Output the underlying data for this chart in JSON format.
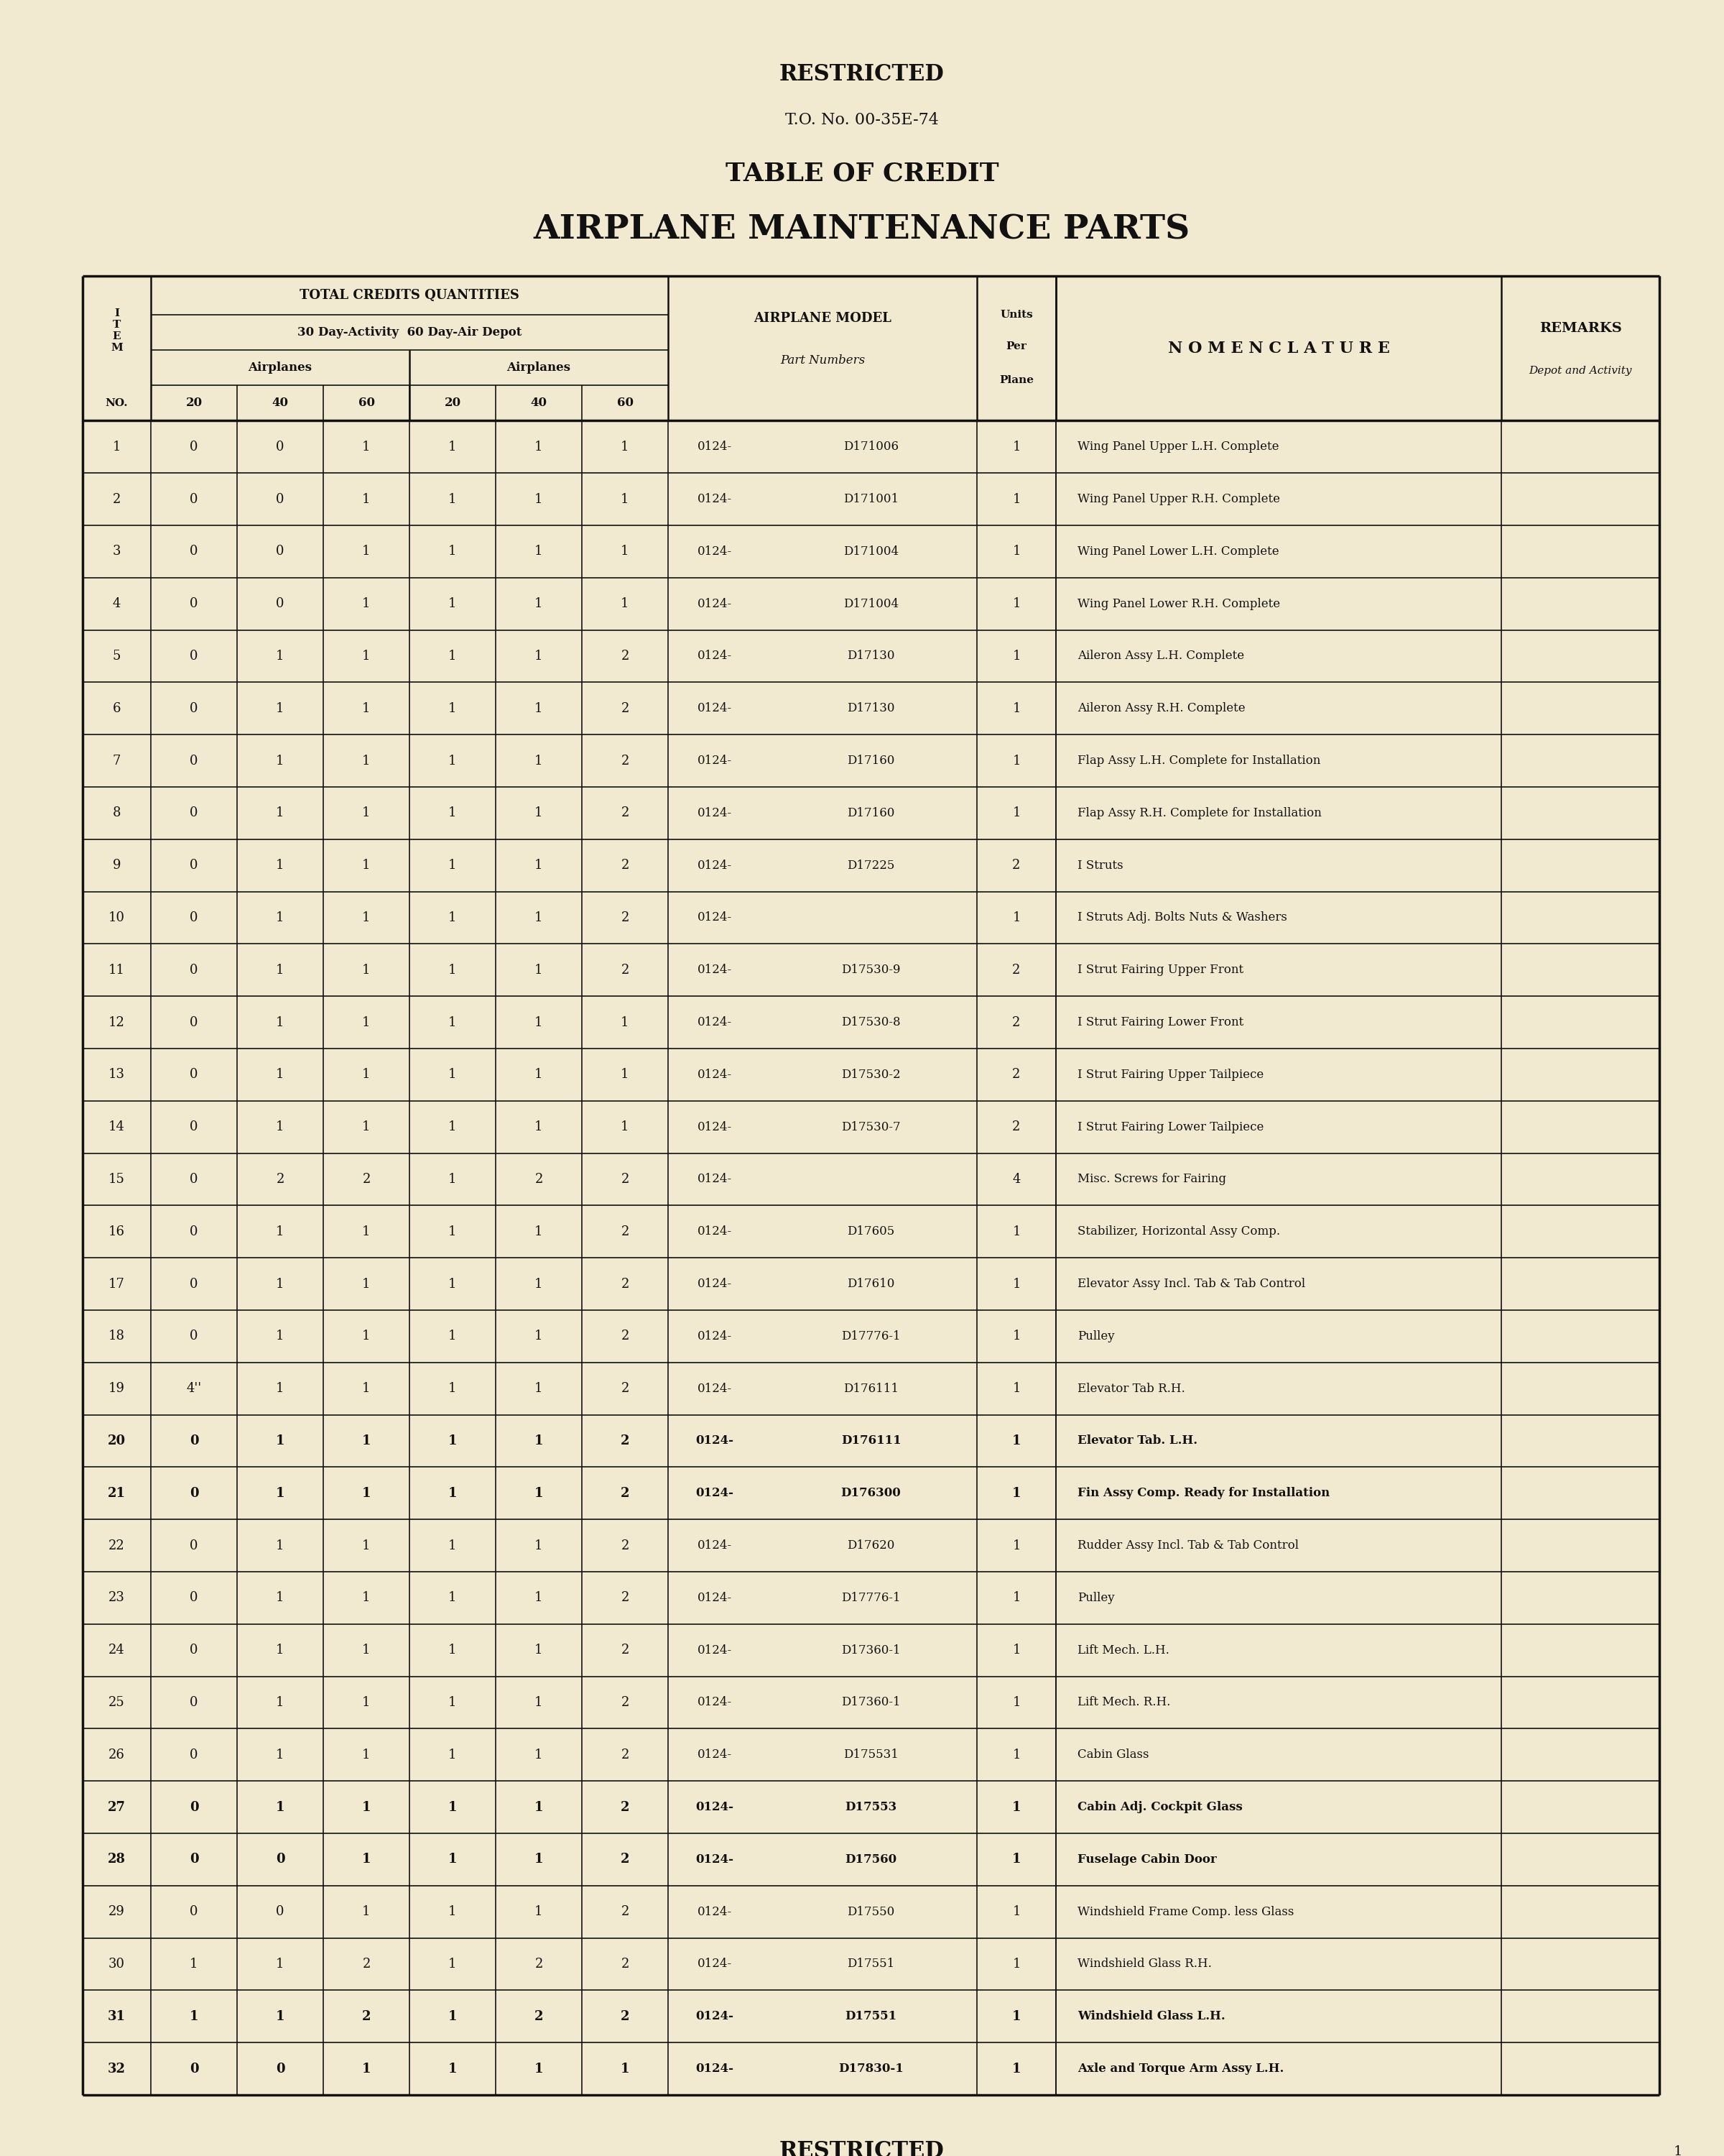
{
  "title_restricted": "RESTRICTED",
  "title_to": "T.O. No. 00-35E-74",
  "title_line1": "TABLE OF CREDIT",
  "title_line2": "AIRPLANE MAINTENANCE PARTS",
  "footer_restricted": "RESTRICTED",
  "page_number": "1",
  "bg_color": "#f2ead0",
  "text_color": "#111111",
  "rows": [
    {
      "no": "1",
      "c20": "0",
      "c40": "0",
      "c60": "1",
      "d20": "1",
      "d40": "1",
      "d60": "1",
      "part_prefix": "0124-",
      "part_num": "D171006",
      "units": "1",
      "nomenclature": "Wing Panel Upper L.H. Complete",
      "bold": false
    },
    {
      "no": "2",
      "c20": "0",
      "c40": "0",
      "c60": "1",
      "d20": "1",
      "d40": "1",
      "d60": "1",
      "part_prefix": "0124-",
      "part_num": "D171001",
      "units": "1",
      "nomenclature": "Wing Panel Upper R.H. Complete",
      "bold": false
    },
    {
      "no": "3",
      "c20": "0",
      "c40": "0",
      "c60": "1",
      "d20": "1",
      "d40": "1",
      "d60": "1",
      "part_prefix": "0124-",
      "part_num": "D171004",
      "units": "1",
      "nomenclature": "Wing Panel Lower L.H. Complete",
      "bold": false
    },
    {
      "no": "4",
      "c20": "0",
      "c40": "0",
      "c60": "1",
      "d20": "1",
      "d40": "1",
      "d60": "1",
      "part_prefix": "0124-",
      "part_num": "D171004",
      "units": "1",
      "nomenclature": "Wing Panel Lower R.H. Complete",
      "bold": false
    },
    {
      "no": "5",
      "c20": "0",
      "c40": "1",
      "c60": "1",
      "d20": "1",
      "d40": "1",
      "d60": "2",
      "part_prefix": "0124-",
      "part_num": "D17130",
      "units": "1",
      "nomenclature": "Aileron Assy L.H. Complete",
      "bold": false
    },
    {
      "no": "6",
      "c20": "0",
      "c40": "1",
      "c60": "1",
      "d20": "1",
      "d40": "1",
      "d60": "2",
      "part_prefix": "0124-",
      "part_num": "D17130",
      "units": "1",
      "nomenclature": "Aileron Assy R.H. Complete",
      "bold": false
    },
    {
      "no": "7",
      "c20": "0",
      "c40": "1",
      "c60": "1",
      "d20": "1",
      "d40": "1",
      "d60": "2",
      "part_prefix": "0124-",
      "part_num": "D17160",
      "units": "1",
      "nomenclature": "Flap Assy L.H. Complete for Installation",
      "bold": false
    },
    {
      "no": "8",
      "c20": "0",
      "c40": "1",
      "c60": "1",
      "d20": "1",
      "d40": "1",
      "d60": "2",
      "part_prefix": "0124-",
      "part_num": "D17160",
      "units": "1",
      "nomenclature": "Flap Assy R.H. Complete for Installation",
      "bold": false
    },
    {
      "no": "9",
      "c20": "0",
      "c40": "1",
      "c60": "1",
      "d20": "1",
      "d40": "1",
      "d60": "2",
      "part_prefix": "0124-",
      "part_num": "D17225",
      "units": "2",
      "nomenclature": "I Struts",
      "bold": false
    },
    {
      "no": "10",
      "c20": "0",
      "c40": "1",
      "c60": "1",
      "d20": "1",
      "d40": "1",
      "d60": "2",
      "part_prefix": "0124-",
      "part_num": "",
      "units": "1",
      "nomenclature": "I Struts Adj. Bolts Nuts & Washers",
      "bold": false
    },
    {
      "no": "11",
      "c20": "0",
      "c40": "1",
      "c60": "1",
      "d20": "1",
      "d40": "1",
      "d60": "2",
      "part_prefix": "0124-",
      "part_num": "D17530-9",
      "units": "2",
      "nomenclature": "I Strut Fairing Upper Front",
      "bold": false
    },
    {
      "no": "12",
      "c20": "0",
      "c40": "1",
      "c60": "1",
      "d20": "1",
      "d40": "1",
      "d60": "1",
      "part_prefix": "0124-",
      "part_num": "D17530-8",
      "units": "2",
      "nomenclature": "I Strut Fairing Lower Front",
      "bold": false
    },
    {
      "no": "13",
      "c20": "0",
      "c40": "1",
      "c60": "1",
      "d20": "1",
      "d40": "1",
      "d60": "1",
      "part_prefix": "0124-",
      "part_num": "D17530-2",
      "units": "2",
      "nomenclature": "I Strut Fairing Upper Tailpiece",
      "bold": false
    },
    {
      "no": "14",
      "c20": "0",
      "c40": "1",
      "c60": "1",
      "d20": "1",
      "d40": "1",
      "d60": "1",
      "part_prefix": "0124-",
      "part_num": "D17530-7",
      "units": "2",
      "nomenclature": "I Strut Fairing Lower Tailpiece",
      "bold": false
    },
    {
      "no": "15",
      "c20": "0",
      "c40": "2",
      "c60": "2",
      "d20": "1",
      "d40": "2",
      "d60": "2",
      "part_prefix": "0124-",
      "part_num": "",
      "units": "4",
      "nomenclature": "Misc. Screws for Fairing",
      "bold": false
    },
    {
      "no": "16",
      "c20": "0",
      "c40": "1",
      "c60": "1",
      "d20": "1",
      "d40": "1",
      "d60": "2",
      "part_prefix": "0124-",
      "part_num": "D17605",
      "units": "1",
      "nomenclature": "Stabilizer, Horizontal Assy Comp.",
      "bold": false
    },
    {
      "no": "17",
      "c20": "0",
      "c40": "1",
      "c60": "1",
      "d20": "1",
      "d40": "1",
      "d60": "2",
      "part_prefix": "0124-",
      "part_num": "D17610",
      "units": "1",
      "nomenclature": "Elevator Assy Incl. Tab & Tab Control",
      "bold": false
    },
    {
      "no": "18",
      "c20": "0",
      "c40": "1",
      "c60": "1",
      "d20": "1",
      "d40": "1",
      "d60": "2",
      "part_prefix": "0124-",
      "part_num": "D17776-1",
      "units": "1",
      "nomenclature": "Pulley",
      "bold": false
    },
    {
      "no": "19",
      "c20": "4''",
      "c40": "1",
      "c60": "1",
      "d20": "1",
      "d40": "1",
      "d60": "2",
      "part_prefix": "0124-",
      "part_num": "D176111",
      "units": "1",
      "nomenclature": "Elevator Tab R.H.",
      "bold": false
    },
    {
      "no": "20",
      "c20": "0",
      "c40": "1",
      "c60": "1",
      "d20": "1",
      "d40": "1",
      "d60": "2",
      "part_prefix": "0124-",
      "part_num": "D176111",
      "units": "1",
      "nomenclature": "Elevator Tab. L.H.",
      "bold": true
    },
    {
      "no": "21",
      "c20": "0",
      "c40": "1",
      "c60": "1",
      "d20": "1",
      "d40": "1",
      "d60": "2",
      "part_prefix": "0124-",
      "part_num": "D176300",
      "units": "1",
      "nomenclature": "Fin Assy Comp. Ready for Installation",
      "bold": true
    },
    {
      "no": "22",
      "c20": "0",
      "c40": "1",
      "c60": "1",
      "d20": "1",
      "d40": "1",
      "d60": "2",
      "part_prefix": "0124-",
      "part_num": "D17620",
      "units": "1",
      "nomenclature": "Rudder Assy Incl. Tab & Tab Control",
      "bold": false
    },
    {
      "no": "23",
      "c20": "0",
      "c40": "1",
      "c60": "1",
      "d20": "1",
      "d40": "1",
      "d60": "2",
      "part_prefix": "0124-",
      "part_num": "D17776-1",
      "units": "1",
      "nomenclature": "Pulley",
      "bold": false
    },
    {
      "no": "24",
      "c20": "0",
      "c40": "1",
      "c60": "1",
      "d20": "1",
      "d40": "1",
      "d60": "2",
      "part_prefix": "0124-",
      "part_num": "D17360-1",
      "units": "1",
      "nomenclature": "Lift Mech. L.H.",
      "bold": false
    },
    {
      "no": "25",
      "c20": "0",
      "c40": "1",
      "c60": "1",
      "d20": "1",
      "d40": "1",
      "d60": "2",
      "part_prefix": "0124-",
      "part_num": "D17360-1",
      "units": "1",
      "nomenclature": "Lift Mech. R.H.",
      "bold": false
    },
    {
      "no": "26",
      "c20": "0",
      "c40": "1",
      "c60": "1",
      "d20": "1",
      "d40": "1",
      "d60": "2",
      "part_prefix": "0124-",
      "part_num": "D175531",
      "units": "1",
      "nomenclature": "Cabin Glass",
      "bold": false
    },
    {
      "no": "27",
      "c20": "0",
      "c40": "1",
      "c60": "1",
      "d20": "1",
      "d40": "1",
      "d60": "2",
      "part_prefix": "0124-",
      "part_num": "D17553",
      "units": "1",
      "nomenclature": "Cabin Adj. Cockpit Glass",
      "bold": true
    },
    {
      "no": "28",
      "c20": "0",
      "c40": "0",
      "c60": "1",
      "d20": "1",
      "d40": "1",
      "d60": "2",
      "part_prefix": "0124-",
      "part_num": "D17560",
      "units": "1",
      "nomenclature": "Fuselage Cabin Door",
      "bold": true
    },
    {
      "no": "29",
      "c20": "0",
      "c40": "0",
      "c60": "1",
      "d20": "1",
      "d40": "1",
      "d60": "2",
      "part_prefix": "0124-",
      "part_num": "D17550",
      "units": "1",
      "nomenclature": "Windshield Frame Comp. less Glass",
      "bold": false
    },
    {
      "no": "30",
      "c20": "1",
      "c40": "1",
      "c60": "2",
      "d20": "1",
      "d40": "2",
      "d60": "2",
      "part_prefix": "0124-",
      "part_num": "D17551",
      "units": "1",
      "nomenclature": "Windshield Glass R.H.",
      "bold": false
    },
    {
      "no": "31",
      "c20": "1",
      "c40": "1",
      "c60": "2",
      "d20": "1",
      "d40": "2",
      "d60": "2",
      "part_prefix": "0124-",
      "part_num": "D17551",
      "units": "1",
      "nomenclature": "Windshield Glass L.H.",
      "bold": true
    },
    {
      "no": "32",
      "c20": "0",
      "c40": "0",
      "c60": "1",
      "d20": "1",
      "d40": "1",
      "d60": "1",
      "part_prefix": "0124-",
      "part_num": "D17830-1",
      "units": "1",
      "nomenclature": "Axle and Torque Arm Assy L.H.",
      "bold": true
    }
  ]
}
